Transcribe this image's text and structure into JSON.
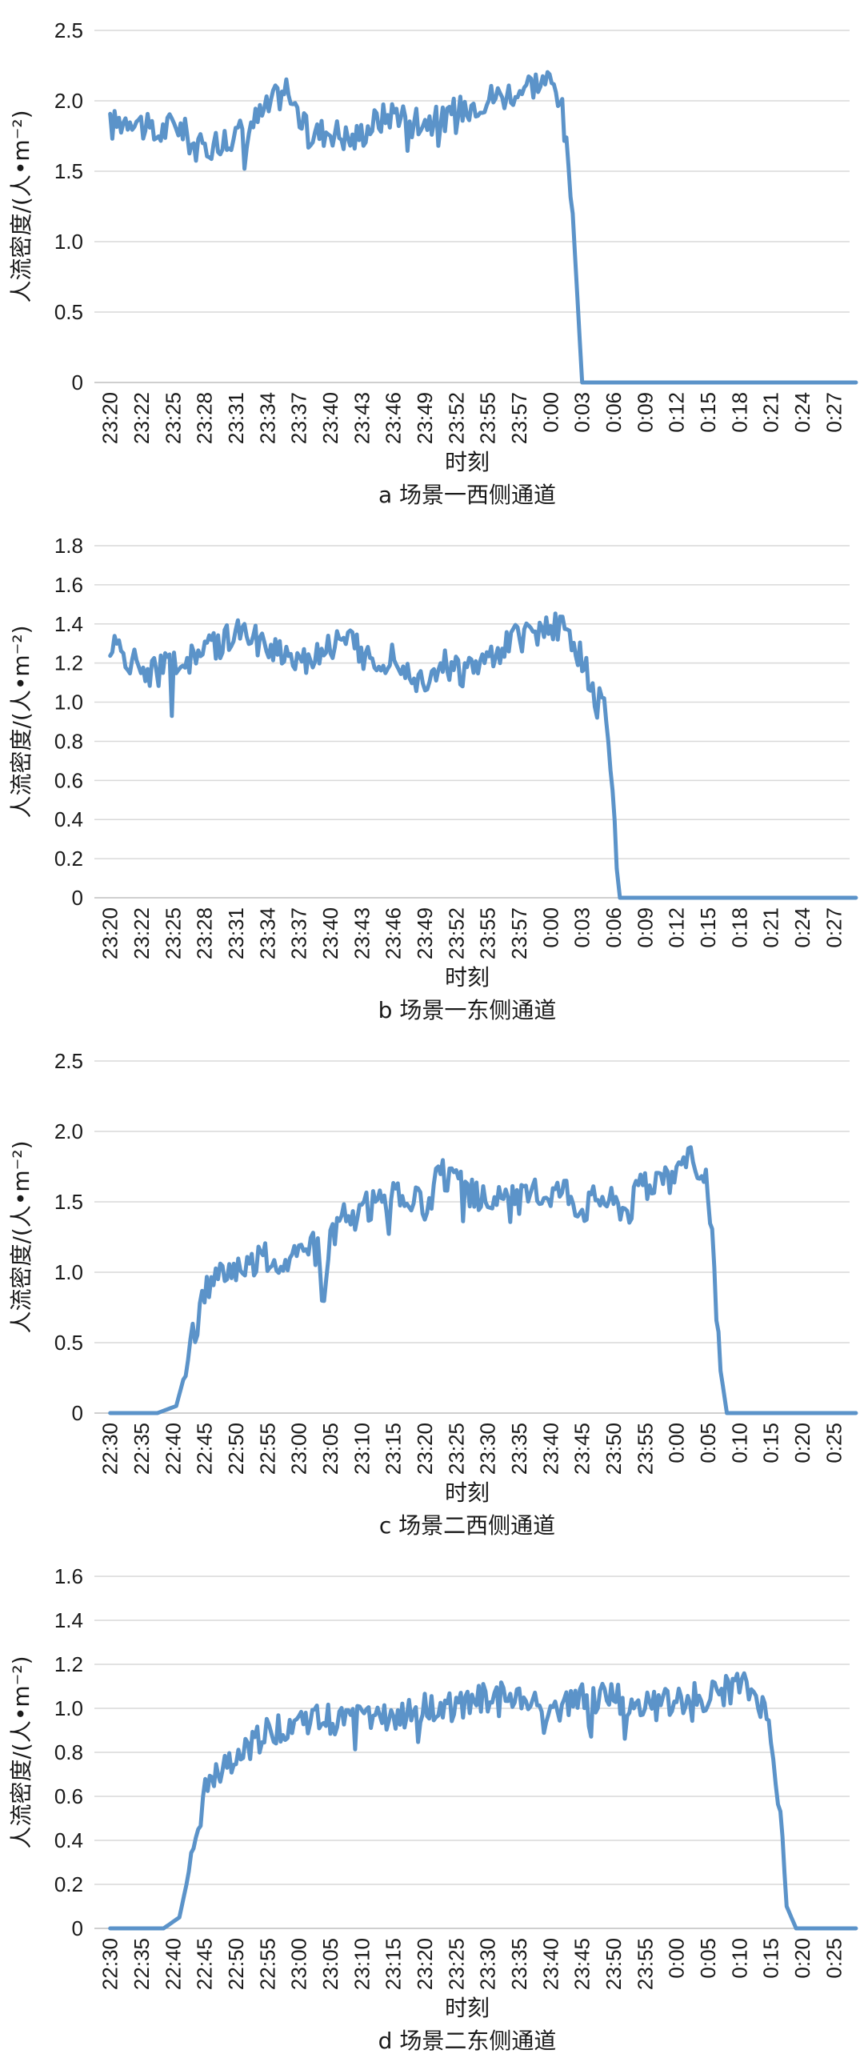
{
  "chart_data": [
    {
      "type": "line",
      "caption": "a 场景一西侧通道",
      "xlabel": "时刻",
      "ylabel": "人流密度/(人•m⁻²)",
      "ylim": [
        0,
        2.5
      ],
      "yticks": [
        "0",
        "0.5",
        "1.0",
        "1.5",
        "2.0",
        "2.5"
      ],
      "categories": [
        "23:20",
        "23:22",
        "23:25",
        "23:28",
        "23:31",
        "23:34",
        "23:37",
        "23:40",
        "23:43",
        "23:46",
        "23:49",
        "23:52",
        "23:55",
        "23:57",
        "0:00",
        "0:03",
        "0:06",
        "0:09",
        "0:12",
        "0:15",
        "0:18",
        "0:21",
        "0:24",
        "0:27"
      ],
      "series": [
        {
          "color": "#5b93c9",
          "x": [
            0.0,
            0.7,
            1.4,
            2.1,
            2.8,
            3.5,
            4.2,
            4.9,
            5.6,
            6.3,
            7.0,
            7.7,
            8.4,
            9.1,
            9.8,
            10.5,
            11.2,
            11.9,
            12.6,
            13.3,
            13.9,
            14.3,
            14.5,
            14.7,
            15.0,
            18.0,
            21.0,
            23.0,
            23.7
          ],
          "values": [
            1.82,
            1.9,
            1.75,
            1.85,
            1.65,
            1.72,
            1.78,
            1.92,
            2.1,
            1.75,
            1.8,
            1.72,
            1.85,
            1.93,
            1.88,
            1.85,
            1.95,
            2.02,
            2.05,
            2.12,
            2.15,
            2.05,
            1.65,
            1.2,
            0.0,
            0.0,
            0.0,
            0.0,
            0.0
          ]
        }
      ]
    },
    {
      "type": "line",
      "caption": "b 场景一东侧通道",
      "xlabel": "时刻",
      "ylabel": "人流密度/(人•m⁻²)",
      "ylim": [
        0,
        1.8
      ],
      "yticks": [
        "0",
        "0.2",
        "0.4",
        "0.6",
        "0.8",
        "1.0",
        "1.2",
        "1.4",
        "1.6",
        "1.8"
      ],
      "categories": [
        "23:20",
        "23:22",
        "23:25",
        "23:28",
        "23:31",
        "23:34",
        "23:37",
        "23:40",
        "23:43",
        "23:46",
        "23:49",
        "23:52",
        "23:55",
        "23:57",
        "0:00",
        "0:03",
        "0:06",
        "0:09",
        "0:12",
        "0:15",
        "0:18",
        "0:21",
        "0:24",
        "0:27"
      ],
      "series": [
        {
          "color": "#5b93c9",
          "x": [
            0.0,
            0.7,
            1.4,
            2.1,
            2.8,
            3.5,
            4.2,
            4.9,
            5.6,
            6.3,
            7.0,
            7.7,
            8.4,
            9.1,
            9.8,
            10.5,
            11.2,
            11.9,
            12.6,
            13.3,
            14.0,
            14.6,
            15.0,
            15.4,
            15.7,
            15.9,
            16.1,
            16.2,
            18.0,
            21.0,
            23.0,
            23.7
          ],
          "values": [
            1.3,
            1.2,
            1.15,
            1.2,
            1.25,
            1.3,
            1.35,
            1.3,
            1.25,
            1.22,
            1.3,
            1.3,
            1.2,
            1.25,
            1.1,
            1.2,
            1.15,
            1.2,
            1.3,
            1.35,
            1.4,
            1.35,
            1.2,
            1.05,
            1.1,
            0.7,
            0.15,
            0.0,
            0.0,
            0.0,
            0.0,
            0.0
          ]
        }
      ]
    },
    {
      "type": "line",
      "caption": "c 场景二西侧通道",
      "xlabel": "时刻",
      "ylabel": "人流密度/(人•m⁻²)",
      "ylim": [
        0,
        2.5
      ],
      "yticks": [
        "0",
        "0.5",
        "1.0",
        "1.5",
        "2.0",
        "2.5"
      ],
      "categories": [
        "22:30",
        "22:35",
        "22:40",
        "22:45",
        "22:50",
        "22:55",
        "23:00",
        "23:05",
        "23:10",
        "23:15",
        "23:20",
        "23:25",
        "23:30",
        "23:35",
        "23:40",
        "23:45",
        "23:50",
        "23:55",
        "0:00",
        "0:05",
        "0:10",
        "0:15",
        "0:20",
        "0:25"
      ],
      "series": [
        {
          "color": "#5b93c9",
          "x": [
            0.0,
            1.5,
            2.1,
            2.4,
            2.7,
            3.0,
            3.5,
            4.0,
            5.0,
            6.0,
            6.6,
            6.8,
            7.0,
            7.5,
            8.5,
            9.5,
            10.0,
            10.5,
            11.5,
            12.5,
            13.5,
            14.5,
            15.0,
            15.5,
            16.5,
            17.0,
            17.5,
            18.0,
            18.6,
            19.0,
            19.2,
            19.4,
            19.6,
            20.5,
            22.0,
            23.7
          ],
          "values": [
            0.0,
            0.0,
            0.05,
            0.3,
            0.6,
            0.85,
            1.0,
            1.05,
            1.1,
            1.1,
            1.2,
            0.75,
            1.3,
            1.4,
            1.5,
            1.55,
            1.45,
            1.7,
            1.55,
            1.5,
            1.55,
            1.6,
            1.45,
            1.55,
            1.45,
            1.7,
            1.6,
            1.75,
            1.8,
            1.6,
            1.0,
            0.3,
            0.0,
            0.0,
            0.0,
            0.0
          ]
        }
      ]
    },
    {
      "type": "line",
      "caption": "d 场景二东侧通道",
      "xlabel": "时刻",
      "ylabel": "人流密度/(人•m⁻²)",
      "ylim": [
        0,
        1.6
      ],
      "yticks": [
        "0",
        "0.2",
        "0.4",
        "0.6",
        "0.8",
        "1.0",
        "1.2",
        "1.4",
        "1.6"
      ],
      "categories": [
        "22:30",
        "22:35",
        "22:40",
        "22:45",
        "22:50",
        "22:55",
        "23:00",
        "23:05",
        "23:10",
        "23:15",
        "23:20",
        "23:25",
        "23:30",
        "23:35",
        "23:40",
        "23:45",
        "23:50",
        "23:55",
        "0:00",
        "0:05",
        "0:10",
        "0:15",
        "0:20",
        "0:25"
      ],
      "series": [
        {
          "color": "#5b93c9",
          "x": [
            0.0,
            1.7,
            2.2,
            2.5,
            2.8,
            3.1,
            3.5,
            4.0,
            4.6,
            5.2,
            6.0,
            7.0,
            8.0,
            9.0,
            10.0,
            11.0,
            12.0,
            13.0,
            14.0,
            15.0,
            16.0,
            17.0,
            18.0,
            19.0,
            20.0,
            20.6,
            21.0,
            21.3,
            21.5,
            21.8,
            22.5,
            23.7
          ],
          "values": [
            0.0,
            0.0,
            0.05,
            0.25,
            0.5,
            0.65,
            0.7,
            0.75,
            0.85,
            0.9,
            0.95,
            0.95,
            0.95,
            0.95,
            1.0,
            1.0,
            1.05,
            1.05,
            1.0,
            1.05,
            1.05,
            1.0,
            1.05,
            1.05,
            1.1,
            1.05,
            0.9,
            0.5,
            0.1,
            0.0,
            0.0,
            0.0
          ]
        }
      ]
    }
  ]
}
